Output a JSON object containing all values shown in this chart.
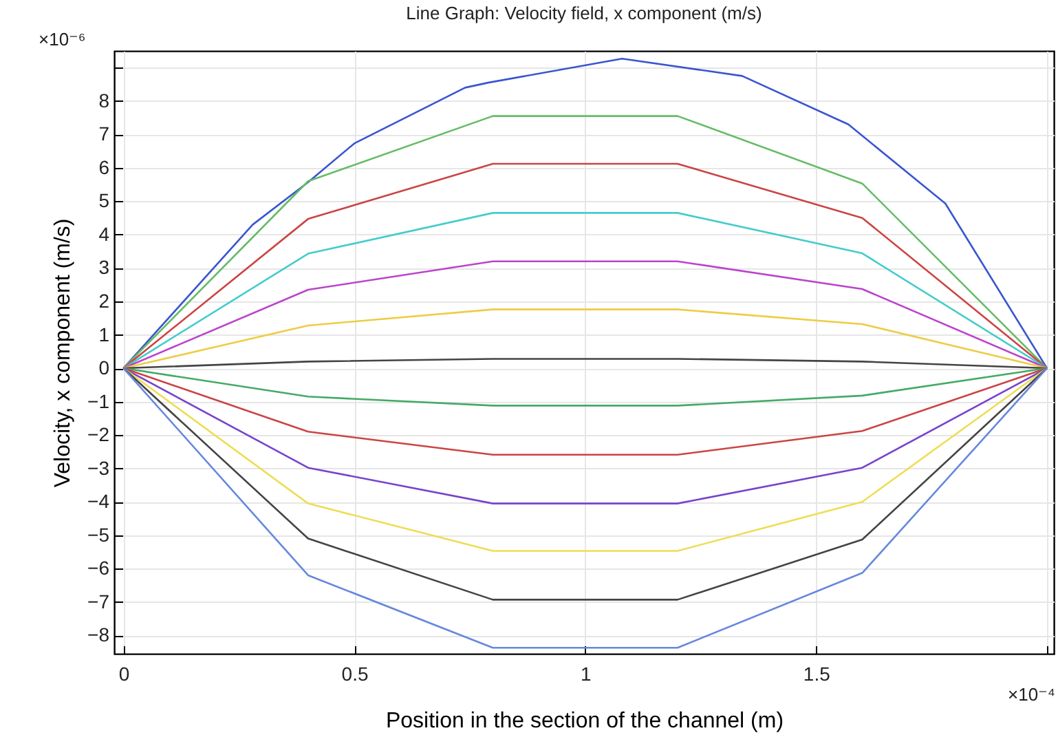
{
  "chart_data": {
    "type": "line",
    "title": "Line Graph: Velocity field, x component (m/s)",
    "xlabel": "Position in the section of the channel (m)",
    "ylabel": "Velocity, x component (m/s)",
    "annotations": [
      "×10⁻⁶",
      "×10⁻⁴"
    ],
    "x": [
      0,
      0.4,
      0.8,
      1.2,
      1.6,
      2
    ],
    "xlim": [
      -0.02,
      2.015
    ],
    "xticks": [
      0,
      0.5,
      1,
      1.5,
      {
        "value": 2,
        "label": null
      }
    ],
    "ylim": [
      -8.55,
      9.5
    ],
    "yticks": [
      -8,
      -7,
      -6,
      -5,
      -4,
      -3,
      -2,
      -1,
      0,
      1,
      2,
      3,
      4,
      5,
      6,
      7,
      8,
      {
        "value": 9,
        "label": null
      }
    ],
    "grid": true,
    "line_style": "solid",
    "series": [
      {
        "color": "#3a55d0",
        "x": [
          0,
          0.28,
          0.4,
          0.5,
          0.74,
          0.79,
          1.08,
          1.34,
          1.57,
          1.78,
          2
        ],
        "values": [
          0,
          4.3,
          5.57,
          6.73,
          8.4,
          8.55,
          9.27,
          8.75,
          7.3,
          4.93,
          0
        ]
      },
      {
        "color": "#66bb66",
        "values": [
          0,
          5.6,
          7.55,
          7.55,
          5.53,
          0
        ]
      },
      {
        "color": "#cc4444",
        "values": [
          0,
          4.47,
          6.12,
          6.12,
          4.5,
          0
        ]
      },
      {
        "color": "#44cccc",
        "values": [
          0,
          3.43,
          4.65,
          4.65,
          3.44,
          0
        ]
      },
      {
        "color": "#bb44cc",
        "values": [
          0,
          2.35,
          3.2,
          3.2,
          2.37,
          0
        ]
      },
      {
        "color": "#eecc44",
        "values": [
          0,
          1.28,
          1.76,
          1.76,
          1.32,
          0
        ]
      },
      {
        "color": "#444444",
        "values": [
          0,
          0.2,
          0.28,
          0.28,
          0.2,
          0
        ]
      },
      {
        "color": "#44aa66",
        "values": [
          0,
          -0.85,
          -1.12,
          -1.12,
          -0.82,
          0
        ]
      },
      {
        "color": "#cc4444",
        "values": [
          0,
          -1.9,
          -2.59,
          -2.59,
          -1.88,
          0
        ]
      },
      {
        "color": "#7744cc",
        "values": [
          0,
          -2.98,
          -4.05,
          -4.05,
          -2.98,
          0
        ]
      },
      {
        "color": "#eedd55",
        "values": [
          0,
          -4.05,
          -5.47,
          -5.47,
          -4.0,
          0
        ]
      },
      {
        "color": "#444444",
        "values": [
          0,
          -5.1,
          -6.93,
          -6.93,
          -5.13,
          0
        ]
      },
      {
        "color": "#6688dd",
        "values": [
          0,
          -6.2,
          -8.37,
          -8.37,
          -6.13,
          0
        ]
      }
    ]
  }
}
